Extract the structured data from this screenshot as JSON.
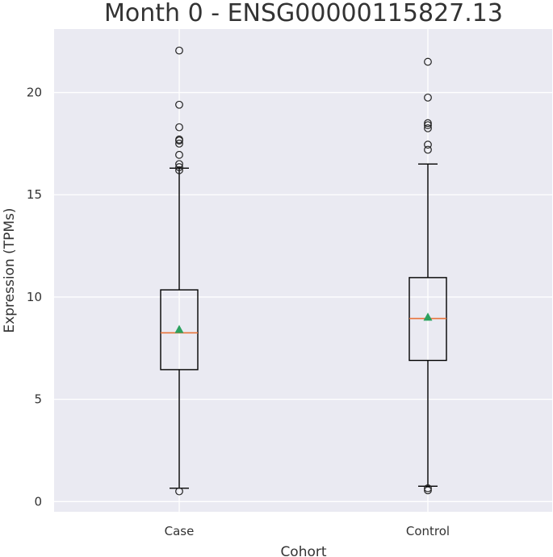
{
  "chart_data": {
    "type": "box",
    "title": "Month 0 - ENSG00000115827.13",
    "xlabel": "Cohort",
    "ylabel": "Expression (TPMs)",
    "categories": [
      "Case",
      "Control"
    ],
    "yticks": [
      0,
      5,
      10,
      15,
      20
    ],
    "ylim": [
      -0.5,
      23.1
    ],
    "grid": true,
    "background_color": "#eaeaf2",
    "median_color": "#e8743b",
    "mean_marker_color": "#2ca25f",
    "box_color": "#000000",
    "boxes": [
      {
        "category": "Case",
        "whisker_low": 0.65,
        "q1": 6.45,
        "median": 8.25,
        "mean": 8.4,
        "q3": 10.35,
        "whisker_high": 16.3,
        "outliers": [
          0.5,
          16.2,
          16.35,
          16.5,
          16.95,
          17.5,
          17.65,
          17.7,
          18.3,
          19.4,
          22.05
        ]
      },
      {
        "category": "Control",
        "whisker_low": 0.75,
        "q1": 6.9,
        "median": 8.95,
        "mean": 9.0,
        "q3": 10.95,
        "whisker_high": 16.5,
        "outliers": [
          0.55,
          0.65,
          17.2,
          17.45,
          18.25,
          18.4,
          18.5,
          19.75,
          21.5
        ]
      }
    ]
  }
}
